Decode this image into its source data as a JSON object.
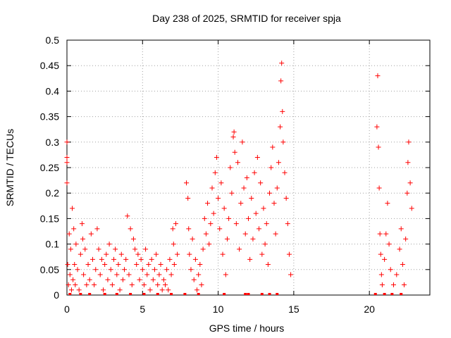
{
  "chart_data": {
    "type": "scatter",
    "title": "Day 238 of 2025, SRMTID for receiver spja",
    "xlabel": "GPS time / hours",
    "ylabel": "SRMTID / TECUs",
    "xlim": [
      0,
      24
    ],
    "ylim": [
      0,
      0.5
    ],
    "xticks": [
      0,
      5,
      10,
      15,
      20
    ],
    "xtick_labels": [
      "0",
      "5",
      "10",
      "15",
      "20"
    ],
    "yticks": [
      0,
      0.05,
      0.1,
      0.15,
      0.2,
      0.25,
      0.3,
      0.35,
      0.4,
      0.45,
      0.5
    ],
    "ytick_labels": [
      "0",
      "0.05",
      "0.1",
      "0.15",
      "0.2",
      "0.25",
      "0.3",
      "0.35",
      "0.4",
      "0.45",
      "0.5"
    ],
    "grid": true,
    "marker": "plus",
    "series": [
      {
        "name": "SRMTID",
        "color": "#ff0000",
        "points": [
          [
            0.0,
            0.3
          ],
          [
            0.0,
            0.27
          ],
          [
            0.0,
            0.26
          ],
          [
            0.0,
            0.22
          ],
          [
            0.05,
            0.06
          ],
          [
            0.1,
            0.02
          ],
          [
            0.15,
            0.12
          ],
          [
            0.2,
            0.04
          ],
          [
            0.25,
            0.09
          ],
          [
            0.3,
            0.01
          ],
          [
            0.35,
            0.17
          ],
          [
            0.4,
            0.03
          ],
          [
            0.45,
            0.13
          ],
          [
            0.5,
            0.06
          ],
          [
            0.55,
            0.02
          ],
          [
            0.6,
            0.1
          ],
          [
            0.7,
            0.05
          ],
          [
            0.8,
            0.01
          ],
          [
            0.9,
            0.08
          ],
          [
            1.0,
            0.14
          ],
          [
            1.05,
            0.11
          ],
          [
            1.1,
            0.04
          ],
          [
            1.2,
            0.09
          ],
          [
            1.3,
            0.02
          ],
          [
            1.4,
            0.06
          ],
          [
            1.5,
            0.03
          ],
          [
            1.6,
            0.12
          ],
          [
            1.7,
            0.07
          ],
          [
            1.8,
            0.02
          ],
          [
            1.9,
            0.05
          ],
          [
            2.0,
            0.13
          ],
          [
            2.1,
            0.09
          ],
          [
            2.2,
            0.04
          ],
          [
            2.3,
            0.07
          ],
          [
            2.4,
            0.01
          ],
          [
            2.5,
            0.06
          ],
          [
            2.6,
            0.08
          ],
          [
            2.7,
            0.03
          ],
          [
            2.8,
            0.1
          ],
          [
            2.9,
            0.05
          ],
          [
            3.0,
            0.02
          ],
          [
            3.1,
            0.07
          ],
          [
            3.2,
            0.09
          ],
          [
            3.3,
            0.04
          ],
          [
            3.4,
            0.06
          ],
          [
            3.5,
            0.01
          ],
          [
            3.6,
            0.08
          ],
          [
            3.7,
            0.03
          ],
          [
            3.8,
            0.05
          ],
          [
            3.9,
            0.07
          ],
          [
            4.0,
            0.155
          ],
          [
            4.1,
            0.04
          ],
          [
            4.2,
            0.13
          ],
          [
            4.3,
            0.02
          ],
          [
            4.4,
            0.11
          ],
          [
            4.5,
            0.09
          ],
          [
            4.6,
            0.06
          ],
          [
            4.7,
            0.08
          ],
          [
            4.8,
            0.03
          ],
          [
            4.9,
            0.07
          ],
          [
            5.0,
            0.05
          ],
          [
            5.1,
            0.02
          ],
          [
            5.2,
            0.09
          ],
          [
            5.3,
            0.04
          ],
          [
            5.4,
            0.06
          ],
          [
            5.5,
            0.01
          ],
          [
            5.6,
            0.07
          ],
          [
            5.7,
            0.03
          ],
          [
            5.8,
            0.05
          ],
          [
            5.9,
            0.08
          ],
          [
            6.0,
            0.02
          ],
          [
            6.1,
            0.04
          ],
          [
            6.2,
            0.06
          ],
          [
            6.3,
            0.01
          ],
          [
            6.4,
            0.03
          ],
          [
            6.5,
            0.02
          ],
          [
            6.6,
            0.05
          ],
          [
            6.7,
            0.01
          ],
          [
            6.8,
            0.07
          ],
          [
            6.9,
            0.04
          ],
          [
            7.0,
            0.13
          ],
          [
            7.05,
            0.1
          ],
          [
            7.1,
            0.06
          ],
          [
            7.2,
            0.14
          ],
          [
            7.3,
            0.08
          ],
          [
            7.9,
            0.22
          ],
          [
            8.0,
            0.19
          ],
          [
            8.05,
            0.13
          ],
          [
            8.1,
            0.08
          ],
          [
            8.2,
            0.05
          ],
          [
            8.3,
            0.11
          ],
          [
            8.4,
            0.03
          ],
          [
            8.5,
            0.07
          ],
          [
            8.6,
            0.01
          ],
          [
            8.7,
            0.04
          ],
          [
            8.8,
            0.06
          ],
          [
            8.9,
            0.02
          ],
          [
            9.0,
            0.09
          ],
          [
            9.1,
            0.15
          ],
          [
            9.2,
            0.12
          ],
          [
            9.3,
            0.18
          ],
          [
            9.4,
            0.1
          ],
          [
            9.5,
            0.14
          ],
          [
            9.6,
            0.21
          ],
          [
            9.7,
            0.16
          ],
          [
            9.8,
            0.24
          ],
          [
            9.9,
            0.27
          ],
          [
            10.0,
            0.19
          ],
          [
            10.1,
            0.13
          ],
          [
            10.2,
            0.22
          ],
          [
            10.3,
            0.08
          ],
          [
            10.4,
            0.17
          ],
          [
            10.5,
            0.04
          ],
          [
            10.6,
            0.11
          ],
          [
            10.7,
            0.15
          ],
          [
            10.8,
            0.25
          ],
          [
            10.9,
            0.2
          ],
          [
            11.0,
            0.31
          ],
          [
            11.05,
            0.32
          ],
          [
            11.1,
            0.28
          ],
          [
            11.2,
            0.14
          ],
          [
            11.3,
            0.26
          ],
          [
            11.4,
            0.09
          ],
          [
            11.5,
            0.18
          ],
          [
            11.6,
            0.3
          ],
          [
            11.7,
            0.21
          ],
          [
            11.8,
            0.12
          ],
          [
            11.9,
            0.23
          ],
          [
            12.0,
            0.15
          ],
          [
            12.1,
            0.07
          ],
          [
            12.2,
            0.19
          ],
          [
            12.3,
            0.11
          ],
          [
            12.4,
            0.24
          ],
          [
            12.5,
            0.16
          ],
          [
            12.6,
            0.27
          ],
          [
            12.7,
            0.13
          ],
          [
            12.8,
            0.22
          ],
          [
            12.9,
            0.08
          ],
          [
            13.0,
            0.17
          ],
          [
            13.1,
            0.1
          ],
          [
            13.2,
            0.14
          ],
          [
            13.3,
            0.06
          ],
          [
            13.4,
            0.2
          ],
          [
            13.5,
            0.25
          ],
          [
            13.6,
            0.29
          ],
          [
            13.7,
            0.18
          ],
          [
            13.8,
            0.12
          ],
          [
            13.9,
            0.21
          ],
          [
            14.0,
            0.26
          ],
          [
            14.1,
            0.33
          ],
          [
            14.15,
            0.42
          ],
          [
            14.2,
            0.455
          ],
          [
            14.25,
            0.36
          ],
          [
            14.3,
            0.3
          ],
          [
            14.4,
            0.24
          ],
          [
            14.5,
            0.19
          ],
          [
            14.6,
            0.14
          ],
          [
            14.7,
            0.08
          ],
          [
            14.8,
            0.04
          ],
          [
            20.5,
            0.33
          ],
          [
            20.55,
            0.43
          ],
          [
            20.6,
            0.29
          ],
          [
            20.65,
            0.21
          ],
          [
            20.7,
            0.12
          ],
          [
            20.75,
            0.08
          ],
          [
            20.8,
            0.04
          ],
          [
            20.85,
            0.02
          ],
          [
            21.0,
            0.07
          ],
          [
            21.1,
            0.12
          ],
          [
            21.2,
            0.18
          ],
          [
            21.3,
            0.1
          ],
          [
            21.4,
            0.05
          ],
          [
            21.6,
            0.02
          ],
          [
            21.8,
            0.04
          ],
          [
            22.0,
            0.09
          ],
          [
            22.1,
            0.13
          ],
          [
            22.2,
            0.06
          ],
          [
            22.3,
            0.02
          ],
          [
            22.4,
            0.11
          ],
          [
            22.5,
            0.2
          ],
          [
            22.55,
            0.26
          ],
          [
            22.6,
            0.3
          ],
          [
            22.7,
            0.22
          ],
          [
            22.8,
            0.17
          ]
        ]
      }
    ],
    "zero_values_x": [
      0.2,
      0.9,
      1.5,
      2.5,
      3.3,
      4.2,
      5.1,
      6.0,
      6.9,
      7.8,
      8.7,
      10.4,
      11.8,
      12.0,
      12.9,
      13.4,
      13.9,
      20.4,
      21.0,
      21.5,
      22.1
    ]
  }
}
